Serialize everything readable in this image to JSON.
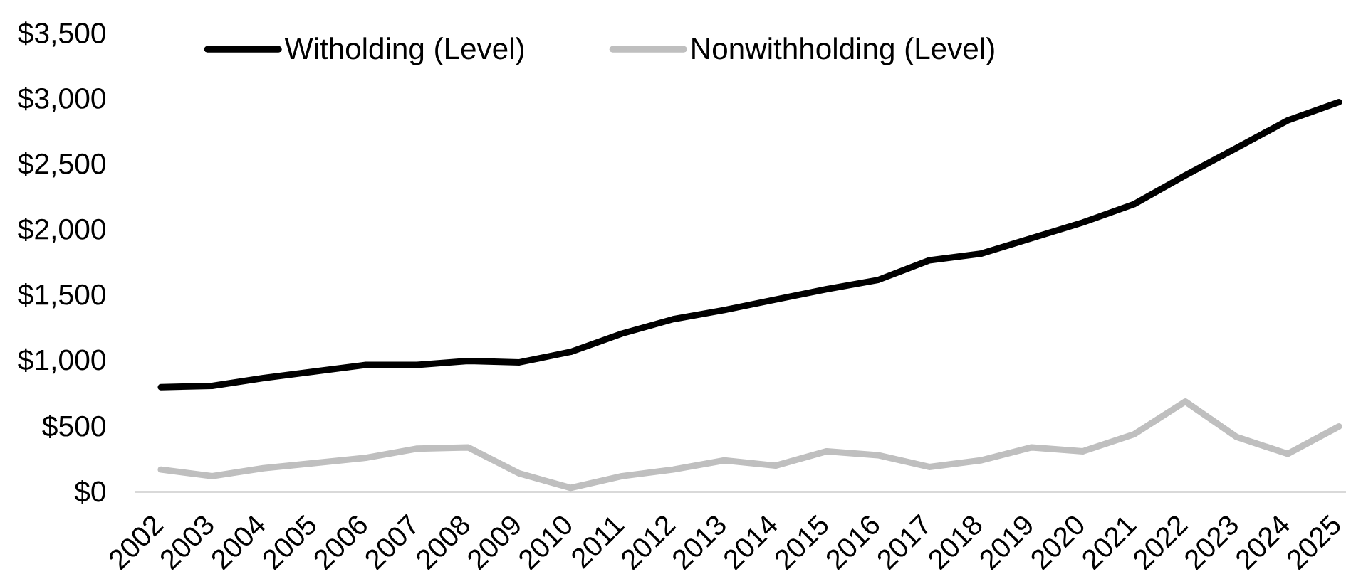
{
  "chart_data": {
    "type": "line",
    "categories": [
      "2002",
      "2003",
      "2004",
      "2005",
      "2006",
      "2007",
      "2008",
      "2009",
      "2010",
      "2011",
      "2012",
      "2013",
      "2014",
      "2015",
      "2016",
      "2017",
      "2018",
      "2019",
      "2020",
      "2021",
      "2022",
      "2023",
      "2024",
      "2025"
    ],
    "series": [
      {
        "name": "Witholding (Level)",
        "color": "#000000",
        "values": [
          800,
          810,
          870,
          920,
          970,
          970,
          1000,
          990,
          1070,
          1210,
          1320,
          1390,
          1470,
          1550,
          1620,
          1770,
          1820,
          1940,
          2060,
          2200,
          2420,
          2630,
          2840,
          2980
        ]
      },
      {
        "name": "Nonwithholding (Level)",
        "color": "#bfbfbf",
        "values": [
          170,
          120,
          180,
          220,
          260,
          330,
          340,
          140,
          30,
          120,
          170,
          240,
          200,
          310,
          280,
          190,
          240,
          340,
          310,
          440,
          690,
          420,
          290,
          500
        ]
      }
    ],
    "ylim": [
      0,
      3500
    ],
    "yticks": [
      {
        "value": 0,
        "label": "$0"
      },
      {
        "value": 500,
        "label": "$500"
      },
      {
        "value": 1000,
        "label": "$1,000"
      },
      {
        "value": 1500,
        "label": "$1,500"
      },
      {
        "value": 2000,
        "label": "$2,000"
      },
      {
        "value": 2500,
        "label": "$2,500"
      },
      {
        "value": 3000,
        "label": "$3,000"
      },
      {
        "value": 3500,
        "label": "$3,500"
      }
    ],
    "legend": "top",
    "marker": "none",
    "line_style": "solid"
  }
}
